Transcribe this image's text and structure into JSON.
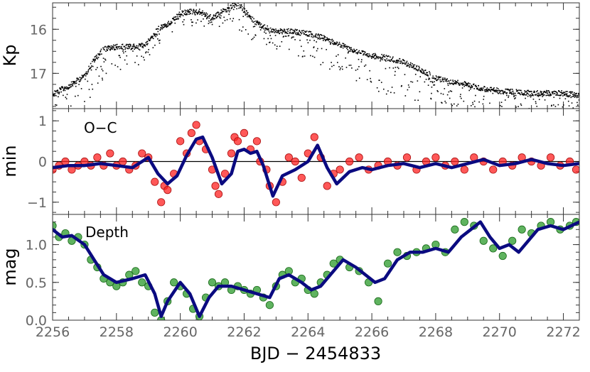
{
  "chart_data": [
    {
      "type": "scatter",
      "panel": "light-curve",
      "title": "",
      "xlabel": "BJD − 2454833",
      "ylabel": "Kp",
      "xlim": [
        2256,
        2272.5
      ],
      "ylim": [
        17.8,
        15.4
      ],
      "y_inverted": true,
      "yticks": [
        16,
        17
      ],
      "ytick_labels": [
        "16",
        "17"
      ],
      "series": [
        {
          "name": "out-of-eclipse envelope (bright)",
          "color": "#000000",
          "x": [
            2256.0,
            2256.5,
            2257.0,
            2257.3,
            2257.6,
            2258.0,
            2258.5,
            2258.9,
            2259.3,
            2259.7,
            2260.0,
            2260.3,
            2260.6,
            2261.0,
            2261.3,
            2261.6,
            2261.8,
            2262.2,
            2262.6,
            2263.0,
            2263.5,
            2264.0,
            2264.5,
            2265.0,
            2265.5,
            2266.0,
            2266.5,
            2267.0,
            2267.5,
            2268.0,
            2268.5,
            2269.0,
            2269.5,
            2270.0,
            2271.0,
            2272.0,
            2272.5
          ],
          "y": [
            17.45,
            17.3,
            17.05,
            16.7,
            16.45,
            16.4,
            16.4,
            16.35,
            16.0,
            15.85,
            15.65,
            15.6,
            15.6,
            15.75,
            15.6,
            15.5,
            15.4,
            15.75,
            15.95,
            16.05,
            16.05,
            16.1,
            16.2,
            16.35,
            16.5,
            16.6,
            16.65,
            16.75,
            16.9,
            17.1,
            17.2,
            17.25,
            17.35,
            17.4,
            17.45,
            17.45,
            17.5
          ]
        },
        {
          "name": "eclipse minima (faint)",
          "color": "#000000",
          "x": [
            2256.0,
            2256.5,
            2257.0,
            2257.5,
            2258.0,
            2258.5,
            2259.0,
            2259.5,
            2260.0,
            2260.5,
            2261.0,
            2261.5,
            2262.0,
            2262.5,
            2263.0,
            2263.5,
            2264.0,
            2264.5,
            2265.0,
            2265.5,
            2266.0,
            2266.5,
            2267.0,
            2267.5,
            2268.0,
            2268.5,
            2269.0,
            2270.0,
            2271.0,
            2272.0,
            2272.5
          ],
          "y": [
            17.8,
            17.75,
            17.7,
            17.4,
            16.95,
            16.9,
            16.65,
            16.3,
            15.9,
            15.95,
            16.05,
            15.85,
            16.15,
            16.35,
            16.5,
            16.55,
            16.7,
            16.9,
            17.05,
            17.2,
            17.35,
            17.5,
            17.55,
            17.65,
            17.75,
            17.75,
            17.8,
            17.8,
            17.8,
            17.8,
            17.8
          ]
        }
      ]
    },
    {
      "type": "scatter",
      "panel": "o-c",
      "annotation": "O−C",
      "xlabel": "BJD − 2454833",
      "ylabel": "min",
      "xlim": [
        2256,
        2272.5
      ],
      "ylim": [
        -1.3,
        1.3
      ],
      "yticks": [
        -1,
        0,
        1
      ],
      "ytick_labels": [
        "−1",
        "0",
        "1"
      ],
      "reference_line": 0,
      "series": [
        {
          "name": "O−C measurements",
          "color": "#ff2020",
          "x": [
            2256.0,
            2256.2,
            2256.4,
            2256.6,
            2256.8,
            2257.0,
            2257.2,
            2257.4,
            2257.6,
            2257.8,
            2258.0,
            2258.2,
            2258.4,
            2258.6,
            2258.8,
            2259.0,
            2259.2,
            2259.4,
            2259.5,
            2259.6,
            2259.8,
            2260.0,
            2260.2,
            2260.35,
            2260.5,
            2260.6,
            2260.8,
            2261.0,
            2261.1,
            2261.2,
            2261.4,
            2261.6,
            2261.7,
            2261.8,
            2262.0,
            2262.2,
            2262.4,
            2262.5,
            2262.7,
            2262.8,
            2263.0,
            2263.2,
            2263.4,
            2263.6,
            2263.8,
            2264.0,
            2264.2,
            2264.4,
            2264.6,
            2264.8,
            2265.0,
            2265.3,
            2265.6,
            2265.9,
            2266.2,
            2266.5,
            2266.8,
            2267.1,
            2267.4,
            2267.7,
            2268.0,
            2268.3,
            2268.6,
            2268.9,
            2269.2,
            2269.5,
            2269.8,
            2270.1,
            2270.4,
            2270.7,
            2271.0,
            2271.3,
            2271.6,
            2271.9,
            2272.2,
            2272.4
          ],
          "y": [
            -0.2,
            -0.1,
            0.0,
            -0.2,
            -0.1,
            0.0,
            -0.1,
            0.1,
            -0.1,
            0.2,
            -0.1,
            0.0,
            -0.2,
            -0.1,
            0.2,
            0.1,
            -0.5,
            -1.0,
            -0.6,
            -0.7,
            -0.3,
            0.5,
            0.2,
            0.7,
            0.9,
            0.5,
            0.3,
            -0.2,
            -0.6,
            -0.8,
            -0.3,
            0.2,
            0.6,
            0.5,
            0.7,
            0.3,
            0.5,
            0.0,
            -0.2,
            -0.6,
            -1.0,
            -0.5,
            0.1,
            0.0,
            -0.4,
            0.2,
            0.6,
            0.1,
            -0.6,
            -0.3,
            -0.2,
            0.0,
            0.1,
            -0.2,
            -0.1,
            0.0,
            -0.1,
            0.1,
            -0.2,
            0.0,
            0.1,
            -0.1,
            0.0,
            -0.2,
            0.1,
            0.0,
            -0.2,
            0.0,
            -0.1,
            0.1,
            0.0,
            -0.1,
            0.1,
            -0.1,
            0.0,
            -0.2
          ]
        },
        {
          "name": "smoothed O−C",
          "color": "#0a0a80",
          "x": [
            2256.0,
            2256.5,
            2257.0,
            2257.5,
            2258.0,
            2258.5,
            2259.0,
            2259.3,
            2259.6,
            2259.9,
            2260.2,
            2260.5,
            2260.7,
            2261.0,
            2261.3,
            2261.6,
            2261.8,
            2262.0,
            2262.2,
            2262.4,
            2262.6,
            2262.9,
            2263.2,
            2263.6,
            2264.0,
            2264.3,
            2264.6,
            2264.9,
            2265.3,
            2265.7,
            2266.0,
            2266.5,
            2267.0,
            2267.5,
            2268.0,
            2268.5,
            2269.0,
            2269.5,
            2270.0,
            2270.5,
            2271.0,
            2271.5,
            2272.0,
            2272.5
          ],
          "y": [
            -0.15,
            -0.1,
            -0.1,
            -0.05,
            -0.1,
            -0.15,
            0.1,
            -0.3,
            -0.55,
            -0.35,
            0.15,
            0.55,
            0.6,
            0.1,
            -0.55,
            -0.3,
            0.25,
            0.3,
            0.2,
            0.25,
            -0.1,
            -0.85,
            -0.35,
            -0.2,
            0.0,
            0.4,
            -0.15,
            -0.55,
            -0.25,
            -0.15,
            -0.2,
            -0.1,
            -0.05,
            -0.15,
            -0.05,
            -0.15,
            -0.05,
            0.05,
            -0.1,
            -0.05,
            0.05,
            -0.05,
            -0.1,
            -0.05
          ]
        }
      ]
    },
    {
      "type": "scatter",
      "panel": "depth",
      "annotation": "Depth",
      "xlabel": "BJD − 2454833",
      "ylabel": "mag",
      "xlim": [
        2256,
        2272.5
      ],
      "ylim": [
        0.0,
        1.4
      ],
      "yticks": [
        0.0,
        0.5,
        1.0
      ],
      "ytick_labels": [
        "0.0",
        "0.5",
        "1.0"
      ],
      "xticks": [
        2256,
        2258,
        2260,
        2262,
        2264,
        2266,
        2268,
        2270,
        2272
      ],
      "xtick_labels": [
        "2256",
        "2258",
        "2260",
        "2262",
        "2264",
        "2266",
        "2268",
        "2270",
        "2272"
      ],
      "series": [
        {
          "name": "eclipse depth measurements",
          "color": "#2a9a2a",
          "x": [
            2256.0,
            2256.2,
            2256.4,
            2256.6,
            2256.8,
            2257.0,
            2257.2,
            2257.4,
            2257.6,
            2257.8,
            2258.0,
            2258.2,
            2258.4,
            2258.6,
            2258.8,
            2259.0,
            2259.2,
            2259.4,
            2259.6,
            2259.8,
            2260.0,
            2260.2,
            2260.4,
            2260.6,
            2260.8,
            2261.0,
            2261.2,
            2261.4,
            2261.6,
            2261.8,
            2262.0,
            2262.2,
            2262.4,
            2262.6,
            2262.8,
            2263.0,
            2263.2,
            2263.4,
            2263.6,
            2263.8,
            2264.0,
            2264.2,
            2264.4,
            2264.6,
            2264.8,
            2265.0,
            2265.3,
            2265.6,
            2265.9,
            2266.2,
            2266.5,
            2266.8,
            2267.1,
            2267.4,
            2267.7,
            2268.0,
            2268.3,
            2268.6,
            2268.9,
            2269.2,
            2269.5,
            2269.8,
            2270.1,
            2270.4,
            2270.7,
            2271.0,
            2271.3,
            2271.6,
            2271.9,
            2272.2,
            2272.4
          ],
          "y": [
            1.25,
            1.1,
            1.15,
            1.05,
            1.1,
            1.0,
            0.8,
            0.7,
            0.55,
            0.5,
            0.45,
            0.5,
            0.6,
            0.65,
            0.5,
            0.45,
            0.1,
            0.0,
            0.25,
            0.5,
            0.45,
            0.35,
            0.15,
            0.05,
            0.3,
            0.5,
            0.45,
            0.5,
            0.4,
            0.45,
            0.4,
            0.35,
            0.4,
            0.3,
            0.2,
            0.45,
            0.6,
            0.65,
            0.5,
            0.55,
            0.4,
            0.35,
            0.5,
            0.6,
            0.75,
            0.8,
            0.7,
            0.65,
            0.5,
            0.25,
            0.75,
            0.9,
            0.85,
            0.9,
            0.95,
            1.0,
            0.9,
            1.2,
            1.3,
            1.25,
            1.05,
            0.95,
            0.85,
            1.05,
            1.2,
            1.15,
            1.25,
            1.3,
            1.2,
            1.25,
            1.3
          ]
        },
        {
          "name": "smoothed depth",
          "color": "#0a0a80",
          "x": [
            2256.0,
            2256.3,
            2256.6,
            2257.0,
            2257.3,
            2257.6,
            2258.0,
            2258.5,
            2258.9,
            2259.2,
            2259.4,
            2259.6,
            2260.0,
            2260.3,
            2260.6,
            2260.9,
            2261.2,
            2261.6,
            2262.0,
            2262.4,
            2262.8,
            2263.1,
            2263.4,
            2263.8,
            2264.1,
            2264.4,
            2264.8,
            2265.1,
            2265.5,
            2265.8,
            2266.1,
            2266.4,
            2266.8,
            2267.2,
            2267.6,
            2268.0,
            2268.4,
            2268.8,
            2269.1,
            2269.4,
            2269.7,
            2270.0,
            2270.3,
            2270.6,
            2270.9,
            2271.2,
            2271.6,
            2272.0,
            2272.5
          ],
          "y": [
            1.2,
            1.1,
            1.12,
            1.0,
            0.8,
            0.6,
            0.5,
            0.55,
            0.6,
            0.35,
            0.05,
            0.25,
            0.5,
            0.35,
            0.05,
            0.3,
            0.45,
            0.45,
            0.4,
            0.35,
            0.3,
            0.55,
            0.6,
            0.5,
            0.4,
            0.45,
            0.65,
            0.8,
            0.7,
            0.6,
            0.5,
            0.55,
            0.8,
            0.9,
            0.9,
            0.95,
            0.9,
            1.1,
            1.2,
            1.3,
            1.1,
            0.95,
            1.0,
            0.9,
            1.05,
            1.2,
            1.25,
            1.2,
            1.3
          ]
        }
      ]
    }
  ]
}
